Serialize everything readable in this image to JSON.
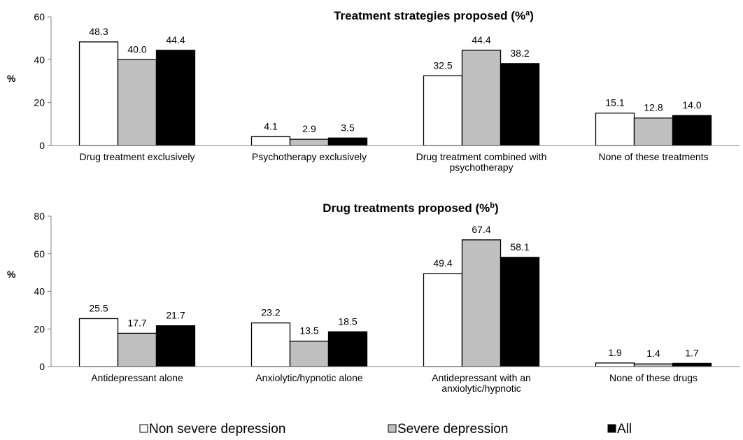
{
  "chart_data": [
    {
      "type": "bar",
      "title": "Treatment strategies proposed (%",
      "title_sup": "a",
      "title_end": ")",
      "ylabel": "%",
      "ylim": [
        0,
        60
      ],
      "yticks": [
        0,
        20,
        40,
        60
      ],
      "categories": [
        [
          "Drug treatment exclusively"
        ],
        [
          "Psychotherapy exclusively"
        ],
        [
          "Drug treatment combined with",
          "psychotherapy"
        ],
        [
          "None of these treatments"
        ]
      ],
      "series": [
        {
          "name": "Non severe depression",
          "color": "#ffffff",
          "values": [
            48.3,
            4.1,
            32.5,
            15.1
          ],
          "labels": [
            "48.3",
            "4.1",
            "32.5",
            "15.1"
          ]
        },
        {
          "name": "Severe depression",
          "color": "#c0c0c0",
          "values": [
            40.0,
            2.9,
            44.4,
            12.8
          ],
          "labels": [
            "40.0",
            "2.9",
            "44.4",
            "12.8"
          ]
        },
        {
          "name": "All",
          "color": "#000000",
          "values": [
            44.4,
            3.5,
            38.2,
            14.0
          ],
          "labels": [
            "44.4",
            "3.5",
            "38.2",
            "14.0"
          ]
        }
      ]
    },
    {
      "type": "bar",
      "title": "Drug treatments proposed (%",
      "title_sup": "b",
      "title_end": ")",
      "ylabel": "%",
      "ylim": [
        0,
        80
      ],
      "yticks": [
        0,
        20,
        40,
        60,
        80
      ],
      "categories": [
        [
          "Antidepressant alone"
        ],
        [
          "Anxiolytic/hypnotic alone"
        ],
        [
          "Antidepressant with an",
          "anxiolytic/hypnotic"
        ],
        [
          "None of these drugs"
        ]
      ],
      "series": [
        {
          "name": "Non severe depression",
          "color": "#ffffff",
          "values": [
            25.5,
            23.2,
            49.4,
            1.9
          ],
          "labels": [
            "25.5",
            "23.2",
            "49.4",
            "1.9"
          ]
        },
        {
          "name": "Severe depression",
          "color": "#c0c0c0",
          "values": [
            17.7,
            13.5,
            67.4,
            1.4
          ],
          "labels": [
            "17.7",
            "13.5",
            "67.4",
            "1.4"
          ]
        },
        {
          "name": "All",
          "color": "#000000",
          "values": [
            21.7,
            18.5,
            58.1,
            1.7
          ],
          "labels": [
            "21.7",
            "18.5",
            "58.1",
            "1.7"
          ]
        }
      ]
    }
  ],
  "legend": {
    "placement": "bottom",
    "items": [
      {
        "label": "Non severe depression",
        "color": "#ffffff"
      },
      {
        "label": "Severe depression",
        "color": "#c0c0c0"
      },
      {
        "label": "All",
        "color": "#000000"
      }
    ]
  }
}
